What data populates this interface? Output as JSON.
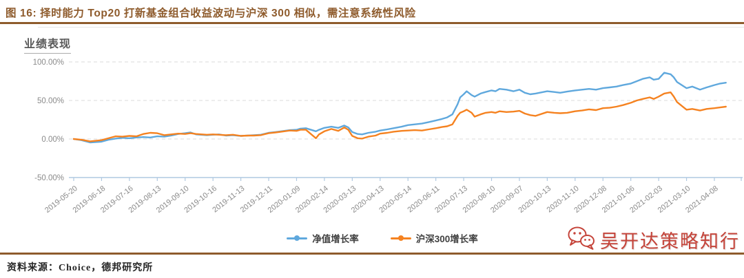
{
  "figure": {
    "title": "图 16: 择时能力 Top20 打新基金组合收益波动与沪深 300 相似，需注意系统性风险",
    "source": "资料来源：Choice，德邦研究所",
    "watermark": {
      "text": "吴开达策略知行",
      "icon": "wechat-icon",
      "color": "#C5443A"
    }
  },
  "colors": {
    "header_brown": "#8E5B2C",
    "blue_series": "#5FA8DD",
    "orange_series": "#F58220",
    "gridline": "#DBDBDB",
    "axis": "#AFC8E0",
    "tick_label": "#8A8A8A"
  },
  "chart_data": {
    "type": "line",
    "title": "业绩表现",
    "xlabel": "",
    "ylabel": "",
    "ylim": [
      -50,
      100
    ],
    "yticks": [
      100,
      50,
      0,
      -50
    ],
    "ytick_labels": [
      "100.00%",
      "50.00%",
      "0.00%",
      "-50.00%"
    ],
    "grid": "horizontal-dashed",
    "legend_position": "bottom-center",
    "xtick_labels": [
      "2019-05-20",
      "2019-06-18",
      "2019-07-16",
      "2019-08-13",
      "2019-09-10",
      "2019-10-16",
      "2019-11-13",
      "2019-12-11",
      "2020-01-09",
      "2020-02-14",
      "2020-03-13",
      "2020-04-13",
      "2020-05-14",
      "2020-06-11",
      "2020-07-13",
      "2020-08-10",
      "2020-09-07",
      "2020-10-13",
      "2020-11-10",
      "2020-12-08",
      "2021-01-06",
      "2021-02-03",
      "2021-03-10",
      "2021-04-08"
    ],
    "unit": "percent",
    "series": [
      {
        "name": "净值增长率",
        "color": "#5FA8DD",
        "points": [
          [
            "2019-05-20",
            0
          ],
          [
            "2019-05-28",
            -1.5
          ],
          [
            "2019-06-06",
            -4.5
          ],
          [
            "2019-06-18",
            -3.5
          ],
          [
            "2019-06-25",
            -1
          ],
          [
            "2019-07-02",
            0.5
          ],
          [
            "2019-07-09",
            1.5
          ],
          [
            "2019-07-16",
            1
          ],
          [
            "2019-07-23",
            2
          ],
          [
            "2019-07-30",
            2.5
          ],
          [
            "2019-08-06",
            2
          ],
          [
            "2019-08-13",
            3.5
          ],
          [
            "2019-08-20",
            3
          ],
          [
            "2019-08-27",
            4.5
          ],
          [
            "2019-09-03",
            6.5
          ],
          [
            "2019-09-10",
            7.5
          ],
          [
            "2019-09-17",
            8.5
          ],
          [
            "2019-09-24",
            6
          ],
          [
            "2019-10-08",
            5
          ],
          [
            "2019-10-16",
            5.5
          ],
          [
            "2019-10-22",
            6
          ],
          [
            "2019-10-29",
            4.5
          ],
          [
            "2019-11-05",
            5
          ],
          [
            "2019-11-13",
            4
          ],
          [
            "2019-11-20",
            4.5
          ],
          [
            "2019-11-26",
            5
          ],
          [
            "2019-12-03",
            5.5
          ],
          [
            "2019-12-11",
            8
          ],
          [
            "2019-12-18",
            9
          ],
          [
            "2019-12-24",
            10
          ],
          [
            "2020-01-02",
            11.5
          ],
          [
            "2020-01-09",
            12
          ],
          [
            "2020-01-14",
            13.5
          ],
          [
            "2020-01-21",
            14
          ],
          [
            "2020-02-03",
            10
          ],
          [
            "2020-02-07",
            12
          ],
          [
            "2020-02-14",
            14.5
          ],
          [
            "2020-02-21",
            16
          ],
          [
            "2020-02-28",
            14.5
          ],
          [
            "2020-03-05",
            17.5
          ],
          [
            "2020-03-09",
            15
          ],
          [
            "2020-03-13",
            9
          ],
          [
            "2020-03-19",
            6.5
          ],
          [
            "2020-03-24",
            6
          ],
          [
            "2020-03-31",
            8
          ],
          [
            "2020-04-08",
            9.5
          ],
          [
            "2020-04-13",
            11
          ],
          [
            "2020-04-21",
            12.5
          ],
          [
            "2020-04-28",
            14
          ],
          [
            "2020-05-07",
            16
          ],
          [
            "2020-05-14",
            18
          ],
          [
            "2020-05-21",
            19
          ],
          [
            "2020-05-28",
            20
          ],
          [
            "2020-06-04",
            22
          ],
          [
            "2020-06-11",
            24
          ],
          [
            "2020-06-18",
            26
          ],
          [
            "2020-06-24",
            28
          ],
          [
            "2020-06-30",
            32
          ],
          [
            "2020-07-06",
            45
          ],
          [
            "2020-07-09",
            54
          ],
          [
            "2020-07-13",
            58
          ],
          [
            "2020-07-16",
            62
          ],
          [
            "2020-07-21",
            57
          ],
          [
            "2020-07-24",
            55
          ],
          [
            "2020-07-30",
            59
          ],
          [
            "2020-08-04",
            61
          ],
          [
            "2020-08-10",
            63
          ],
          [
            "2020-08-14",
            62
          ],
          [
            "2020-08-18",
            65
          ],
          [
            "2020-08-25",
            64
          ],
          [
            "2020-09-01",
            62
          ],
          [
            "2020-09-07",
            64
          ],
          [
            "2020-09-14",
            60
          ],
          [
            "2020-09-21",
            58
          ],
          [
            "2020-09-28",
            59
          ],
          [
            "2020-10-13",
            62
          ],
          [
            "2020-10-20",
            61
          ],
          [
            "2020-10-26",
            60
          ],
          [
            "2020-11-02",
            61.5
          ],
          [
            "2020-11-10",
            63
          ],
          [
            "2020-11-17",
            64
          ],
          [
            "2020-11-24",
            65
          ],
          [
            "2020-12-01",
            64
          ],
          [
            "2020-12-08",
            66
          ],
          [
            "2020-12-15",
            67
          ],
          [
            "2020-12-22",
            68
          ],
          [
            "2020-12-29",
            70
          ],
          [
            "2021-01-06",
            72
          ],
          [
            "2021-01-12",
            75
          ],
          [
            "2021-01-18",
            78
          ],
          [
            "2021-01-25",
            80
          ],
          [
            "2021-01-29",
            77
          ],
          [
            "2021-02-03",
            78
          ],
          [
            "2021-02-10",
            86
          ],
          [
            "2021-02-18",
            84
          ],
          [
            "2021-02-22",
            80
          ],
          [
            "2021-02-26",
            74
          ],
          [
            "2021-03-04",
            70
          ],
          [
            "2021-03-10",
            66
          ],
          [
            "2021-03-16",
            68
          ],
          [
            "2021-03-24",
            64
          ],
          [
            "2021-03-31",
            67
          ],
          [
            "2021-04-08",
            70
          ],
          [
            "2021-04-14",
            72
          ],
          [
            "2021-04-20",
            73
          ]
        ]
      },
      {
        "name": "沪深300增长率",
        "color": "#F58220",
        "points": [
          [
            "2019-05-20",
            0
          ],
          [
            "2019-05-28",
            -1
          ],
          [
            "2019-06-06",
            -3
          ],
          [
            "2019-06-18",
            -1.5
          ],
          [
            "2019-06-25",
            1
          ],
          [
            "2019-07-02",
            3.5
          ],
          [
            "2019-07-09",
            3
          ],
          [
            "2019-07-16",
            4
          ],
          [
            "2019-07-23",
            3.5
          ],
          [
            "2019-07-30",
            6.5
          ],
          [
            "2019-08-06",
            8
          ],
          [
            "2019-08-13",
            7.5
          ],
          [
            "2019-08-20",
            5
          ],
          [
            "2019-08-27",
            6
          ],
          [
            "2019-09-03",
            7
          ],
          [
            "2019-09-10",
            6.5
          ],
          [
            "2019-09-17",
            7.5
          ],
          [
            "2019-09-24",
            6.5
          ],
          [
            "2019-10-08",
            5.5
          ],
          [
            "2019-10-16",
            6
          ],
          [
            "2019-10-22",
            5.5
          ],
          [
            "2019-10-29",
            5
          ],
          [
            "2019-11-05",
            5.5
          ],
          [
            "2019-11-13",
            4
          ],
          [
            "2019-11-20",
            4.5
          ],
          [
            "2019-11-26",
            4.5
          ],
          [
            "2019-12-03",
            5
          ],
          [
            "2019-12-11",
            7.5
          ],
          [
            "2019-12-18",
            8.5
          ],
          [
            "2019-12-24",
            9.5
          ],
          [
            "2020-01-02",
            11
          ],
          [
            "2020-01-09",
            10.5
          ],
          [
            "2020-01-14",
            12
          ],
          [
            "2020-01-21",
            12
          ],
          [
            "2020-02-03",
            1
          ],
          [
            "2020-02-07",
            6
          ],
          [
            "2020-02-14",
            10
          ],
          [
            "2020-02-21",
            13
          ],
          [
            "2020-02-28",
            10.5
          ],
          [
            "2020-03-05",
            15
          ],
          [
            "2020-03-09",
            12
          ],
          [
            "2020-03-13",
            4
          ],
          [
            "2020-03-19",
            1
          ],
          [
            "2020-03-24",
            0.5
          ],
          [
            "2020-03-31",
            3
          ],
          [
            "2020-04-08",
            4.5
          ],
          [
            "2020-04-13",
            7
          ],
          [
            "2020-04-21",
            8
          ],
          [
            "2020-04-28",
            9.5
          ],
          [
            "2020-05-07",
            10.5
          ],
          [
            "2020-05-14",
            11
          ],
          [
            "2020-05-21",
            11.5
          ],
          [
            "2020-05-28",
            11
          ],
          [
            "2020-06-04",
            12.5
          ],
          [
            "2020-06-11",
            14
          ],
          [
            "2020-06-18",
            15.5
          ],
          [
            "2020-06-24",
            16.5
          ],
          [
            "2020-06-30",
            19
          ],
          [
            "2020-07-06",
            30
          ],
          [
            "2020-07-09",
            34
          ],
          [
            "2020-07-13",
            36
          ],
          [
            "2020-07-16",
            38
          ],
          [
            "2020-07-21",
            34
          ],
          [
            "2020-07-24",
            29
          ],
          [
            "2020-07-30",
            32
          ],
          [
            "2020-08-04",
            34
          ],
          [
            "2020-08-10",
            35
          ],
          [
            "2020-08-14",
            34
          ],
          [
            "2020-08-18",
            36
          ],
          [
            "2020-08-25",
            35
          ],
          [
            "2020-09-01",
            35.5
          ],
          [
            "2020-09-07",
            36.5
          ],
          [
            "2020-09-14",
            33
          ],
          [
            "2020-09-21",
            31
          ],
          [
            "2020-09-28",
            30
          ],
          [
            "2020-10-13",
            35
          ],
          [
            "2020-10-20",
            34
          ],
          [
            "2020-10-26",
            33.5
          ],
          [
            "2020-11-02",
            34
          ],
          [
            "2020-11-10",
            36
          ],
          [
            "2020-11-17",
            37
          ],
          [
            "2020-11-24",
            38.5
          ],
          [
            "2020-12-01",
            37.5
          ],
          [
            "2020-12-08",
            40
          ],
          [
            "2020-12-15",
            40.5
          ],
          [
            "2020-12-22",
            42
          ],
          [
            "2020-12-29",
            44
          ],
          [
            "2021-01-06",
            47
          ],
          [
            "2021-01-12",
            50
          ],
          [
            "2021-01-18",
            52
          ],
          [
            "2021-01-25",
            54
          ],
          [
            "2021-01-29",
            52
          ],
          [
            "2021-02-03",
            55
          ],
          [
            "2021-02-10",
            59
          ],
          [
            "2021-02-18",
            60.5
          ],
          [
            "2021-02-22",
            55
          ],
          [
            "2021-02-26",
            48
          ],
          [
            "2021-03-04",
            43
          ],
          [
            "2021-03-10",
            38
          ],
          [
            "2021-03-16",
            39
          ],
          [
            "2021-03-24",
            37
          ],
          [
            "2021-03-31",
            39
          ],
          [
            "2021-04-08",
            40
          ],
          [
            "2021-04-14",
            41
          ],
          [
            "2021-04-20",
            42
          ]
        ]
      }
    ]
  }
}
